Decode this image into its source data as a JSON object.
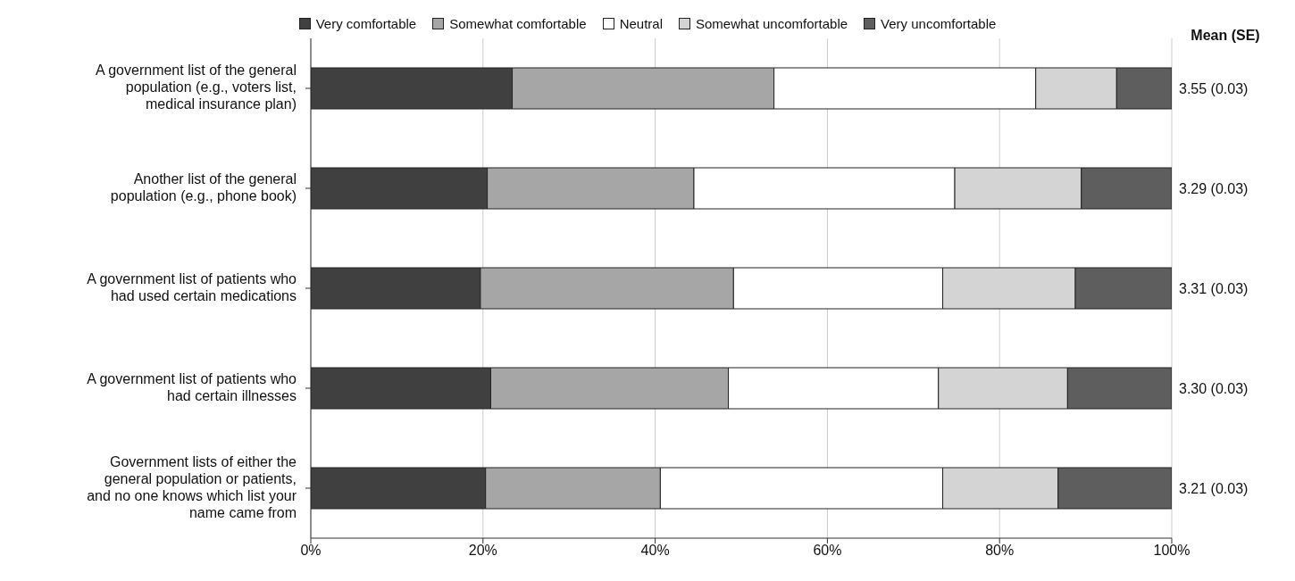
{
  "chart_data": {
    "type": "bar",
    "orientation": "horizontal",
    "stacked": true,
    "categories": [
      "A government list of the general population (e.g., voters list, medical insurance plan)",
      "Another list of the general population (e.g., phone book)",
      "A government list of patients who had used certain medications",
      "A government list of patients who had certain illnesses",
      "Government lists of either the general population or patients, and no one knows which list your name came from"
    ],
    "series": [
      {
        "name": "Very comfortable",
        "color": "#404040",
        "values": [
          23.4,
          20.5,
          19.7,
          20.9,
          20.3
        ]
      },
      {
        "name": "Somewhat comfortable",
        "color": "#a6a6a6",
        "values": [
          30.4,
          24.0,
          29.4,
          27.6,
          20.3
        ]
      },
      {
        "name": "Neutral",
        "color": "#ffffff",
        "values": [
          30.4,
          30.3,
          24.3,
          24.4,
          32.8
        ]
      },
      {
        "name": "Somewhat uncomfortable",
        "color": "#d4d4d4",
        "values": [
          9.4,
          14.7,
          15.4,
          15.0,
          13.4
        ]
      },
      {
        "name": "Very uncomfortable",
        "color": "#5e5e5e",
        "values": [
          6.4,
          10.5,
          11.2,
          12.1,
          13.2
        ]
      }
    ],
    "xlim": [
      0,
      100
    ],
    "xticks": [
      {
        "value": 0,
        "label": "0%"
      },
      {
        "value": 20,
        "label": "20%"
      },
      {
        "value": 40,
        "label": "40%"
      },
      {
        "value": 60,
        "label": "60%"
      },
      {
        "value": 80,
        "label": "80%"
      },
      {
        "value": 100,
        "label": "100%"
      }
    ],
    "grid": "x",
    "legend": "top",
    "annotations": [
      "Mean (SE)",
      "3.55 (0.03)",
      "3.29 (0.03)",
      "3.31 (0.03)",
      "3.30 (0.03)",
      "3.21 (0.03)"
    ]
  }
}
